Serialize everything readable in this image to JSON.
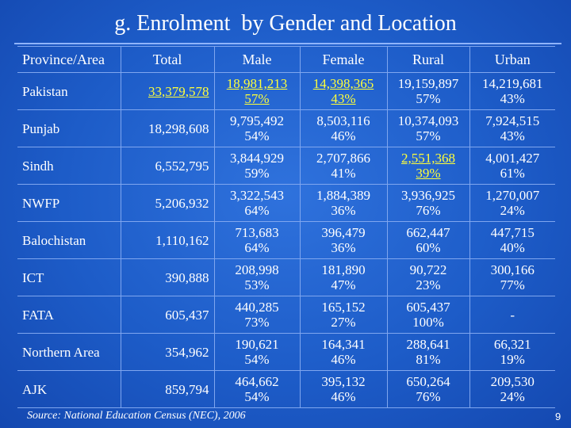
{
  "title": "g. Enrolment  by Gender and Location",
  "headers": [
    "Province/Area",
    "Total",
    "Male",
    "Female",
    "Rural",
    "Urban"
  ],
  "rows": [
    {
      "province": "Pakistan",
      "total": "33,379,578",
      "male": [
        "18,981,213",
        "57%"
      ],
      "female": [
        "14,398,365",
        "43%"
      ],
      "rural": [
        "19,159,897",
        "57%"
      ],
      "urban": [
        "14,219,681",
        "43%"
      ]
    },
    {
      "province": "Punjab",
      "total": "18,298,608",
      "male": [
        "9,795,492",
        "54%"
      ],
      "female": [
        "8,503,116",
        "46%"
      ],
      "rural": [
        "10,374,093",
        "57%"
      ],
      "urban": [
        "7,924,515",
        "43%"
      ]
    },
    {
      "province": "Sindh",
      "total": "6,552,795",
      "male": [
        "3,844,929",
        "59%"
      ],
      "female": [
        "2,707,866",
        "41%"
      ],
      "rural": [
        "2,551,368",
        "39%"
      ],
      "urban": [
        "4,001,427",
        "61%"
      ]
    },
    {
      "province": "NWFP",
      "total": "5,206,932",
      "male": [
        "3,322,543",
        "64%"
      ],
      "female": [
        "1,884,389",
        "36%"
      ],
      "rural": [
        "3,936,925",
        "76%"
      ],
      "urban": [
        "1,270,007",
        "24%"
      ]
    },
    {
      "province": "Balochistan",
      "total": "1,110,162",
      "male": [
        "713,683",
        "64%"
      ],
      "female": [
        "396,479",
        "36%"
      ],
      "rural": [
        "662,447",
        "60%"
      ],
      "urban": [
        "447,715",
        "40%"
      ]
    },
    {
      "province": "ICT",
      "total": "390,888",
      "male": [
        "208,998",
        "53%"
      ],
      "female": [
        "181,890",
        "47%"
      ],
      "rural": [
        "90,722",
        "23%"
      ],
      "urban": [
        "300,166",
        "77%"
      ]
    },
    {
      "province": "FATA",
      "total": "605,437",
      "male": [
        "440,285",
        "73%"
      ],
      "female": [
        "165,152",
        "27%"
      ],
      "rural": [
        "605,437",
        "100%"
      ],
      "urban": [
        "-",
        ""
      ]
    },
    {
      "province": "Northern Area",
      "total": "354,962",
      "male": [
        "190,621",
        "54%"
      ],
      "female": [
        "164,341",
        "46%"
      ],
      "rural": [
        "288,641",
        "81%"
      ],
      "urban": [
        "66,321",
        "19%"
      ]
    },
    {
      "province": "AJK",
      "total": "859,794",
      "male": [
        "464,662",
        "54%"
      ],
      "female": [
        "395,132",
        "46%"
      ],
      "rural": [
        "650,264",
        "76%"
      ],
      "urban": [
        "209,530",
        "24%"
      ]
    }
  ],
  "highlight_color": "#ffff3a",
  "source": "Source:  National Education Census (NEC), 2006",
  "page_number": "9"
}
